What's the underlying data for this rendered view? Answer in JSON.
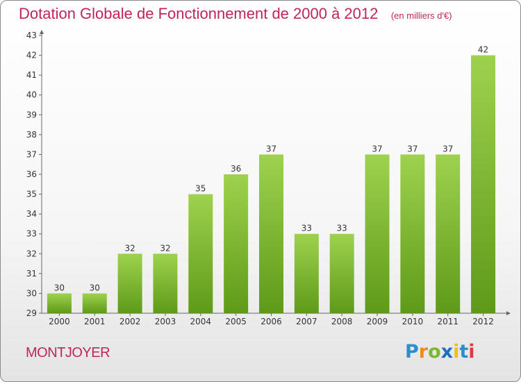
{
  "chart_data": {
    "type": "bar",
    "title": "Dotation Globale de Fonctionnement de 2000 à 2012",
    "subtitle": "(en milliers d'€)",
    "categories": [
      "2000",
      "2001",
      "2002",
      "2003",
      "2004",
      "2005",
      "2006",
      "2007",
      "2008",
      "2009",
      "2010",
      "2011",
      "2012"
    ],
    "values": [
      30,
      30,
      32,
      32,
      35,
      36,
      37,
      33,
      33,
      37,
      37,
      37,
      42
    ],
    "data_labels": [
      "30",
      "30",
      "32",
      "32",
      "35",
      "36",
      "37",
      "33",
      "33",
      "37",
      "37",
      "37",
      "42"
    ],
    "ylim": [
      29,
      43
    ],
    "yticks": [
      29,
      30,
      31,
      32,
      33,
      34,
      35,
      36,
      37,
      38,
      39,
      40,
      41,
      42,
      43
    ],
    "xlabel": "",
    "ylabel": "",
    "grid": false,
    "bar_color": "#7ab830"
  },
  "commune": "MONTJOYER",
  "brand": {
    "letters": [
      "P",
      "r",
      "o",
      "x",
      "i",
      "t",
      "i"
    ],
    "colors": [
      "#2a8fd0",
      "#f08a1c",
      "#7cb82f",
      "#1f6fc0",
      "#e8c21a",
      "#2a8fd0",
      "#e03a3a"
    ]
  },
  "colors": {
    "title": "#c0245c",
    "bar_top": "#9ed24e",
    "bar_bottom": "#5e9a18"
  }
}
